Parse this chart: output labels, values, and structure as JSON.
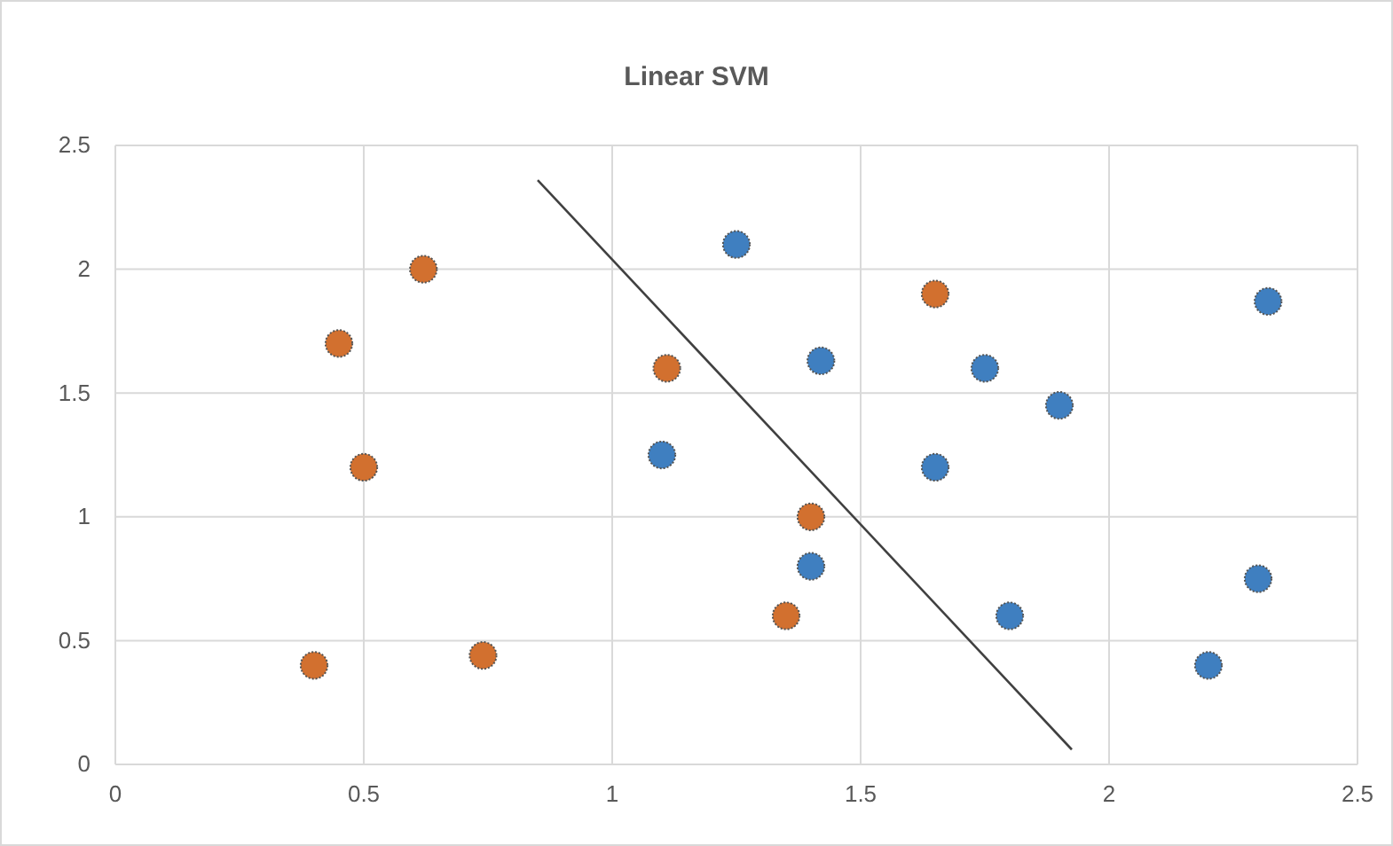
{
  "chart_data": {
    "type": "scatter",
    "title": "Linear SVM",
    "xlim": [
      0,
      2.5
    ],
    "xticks": [
      0,
      0.5,
      1,
      1.5,
      2,
      2.5
    ],
    "ylim": [
      0,
      2.5
    ],
    "yticks": [
      0,
      0.5,
      1,
      1.5,
      2,
      2.5
    ],
    "grid": true,
    "marker": "circle",
    "series": [
      {
        "color": "#d2702f",
        "x": [
          0.4,
          0.45,
          0.5,
          0.62,
          0.74,
          1.11,
          1.4,
          1.35,
          1.65
        ],
        "values": [
          0.4,
          1.7,
          1.2,
          2.0,
          0.44,
          1.6,
          1.0,
          0.6,
          1.9
        ]
      },
      {
        "color": "#3f7fc0",
        "x": [
          1.25,
          1.42,
          1.1,
          1.4,
          1.65,
          1.75,
          1.9,
          1.8,
          2.2,
          2.3,
          2.32
        ],
        "values": [
          2.1,
          1.63,
          1.25,
          0.8,
          1.2,
          1.6,
          1.45,
          0.6,
          0.4,
          0.75,
          1.87
        ]
      },
      {
        "type": "line",
        "color": "#404040",
        "marker": "none",
        "line_style": "solid",
        "x": [
          0.85,
          1.925
        ],
        "values": [
          2.36,
          0.06
        ]
      }
    ]
  }
}
